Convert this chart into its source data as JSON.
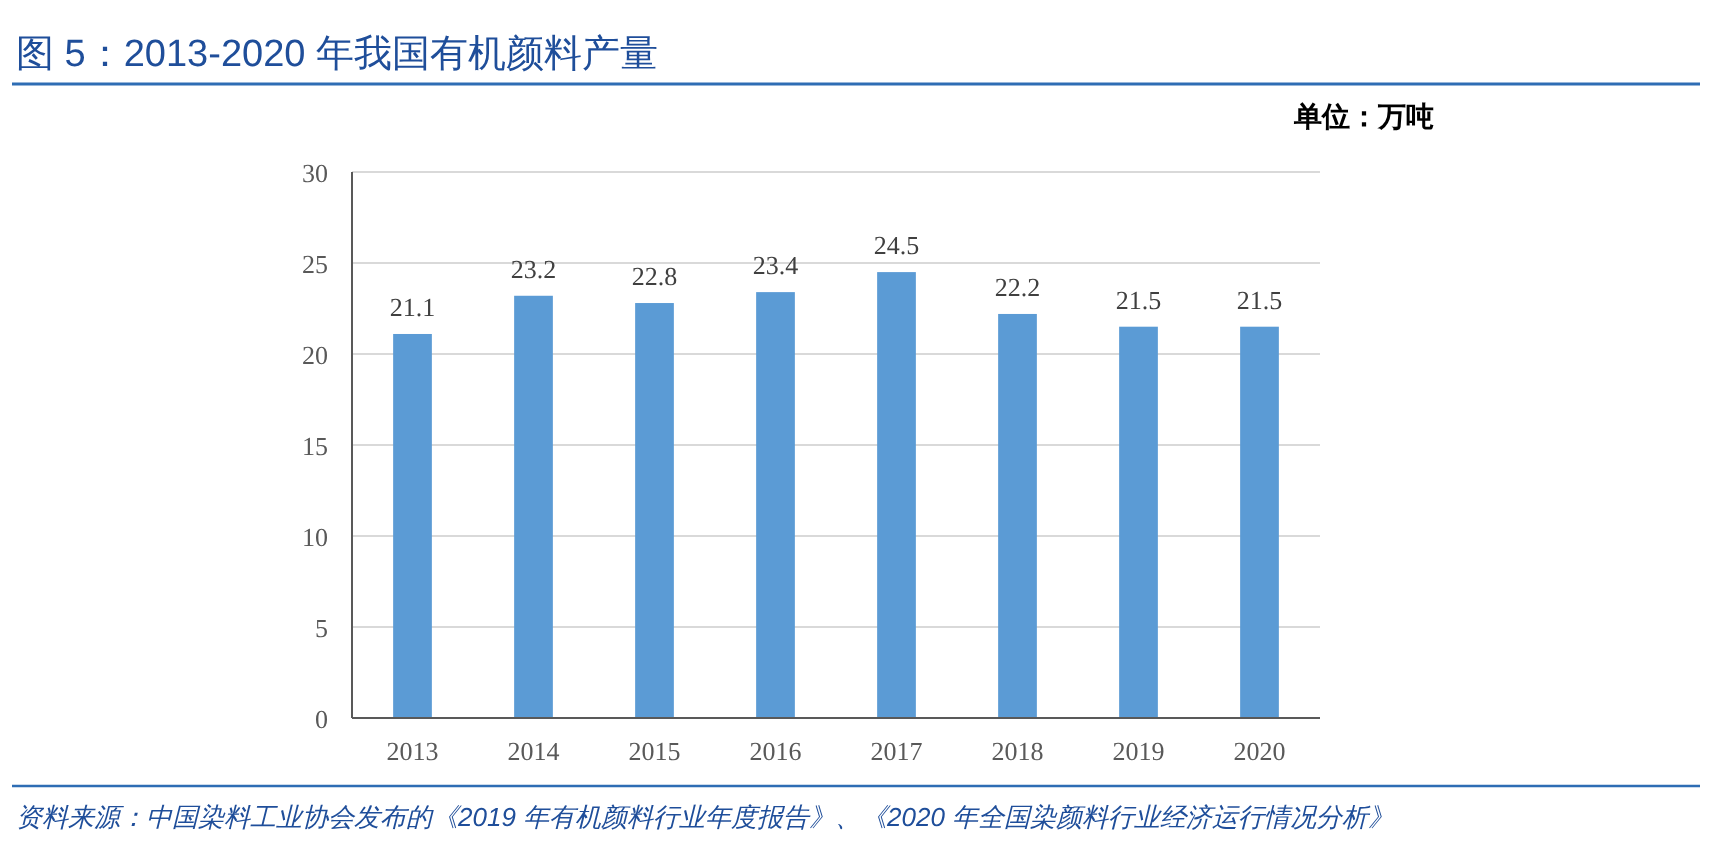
{
  "chart_data": {
    "type": "bar",
    "title": "图 5：2013-2020 年我国有机颜料产量",
    "ylabel": "单位：万吨",
    "categories": [
      "2013",
      "2014",
      "2015",
      "2016",
      "2017",
      "2018",
      "2019",
      "2020"
    ],
    "values": [
      21.1,
      23.2,
      22.8,
      23.4,
      24.5,
      22.2,
      21.5,
      21.5
    ],
    "color": "#5b9bd5",
    "ylim": [
      0,
      30
    ],
    "yticks": [
      0,
      5,
      10,
      15,
      20,
      25,
      30
    ],
    "grid": "y",
    "data_labels": true,
    "annotations": [
      "资料来源：中国染料工业协会发布的《2019 年有机颜料行业年度报告》、《2020 年全国染颜料行业经济运行情况分析》"
    ]
  }
}
